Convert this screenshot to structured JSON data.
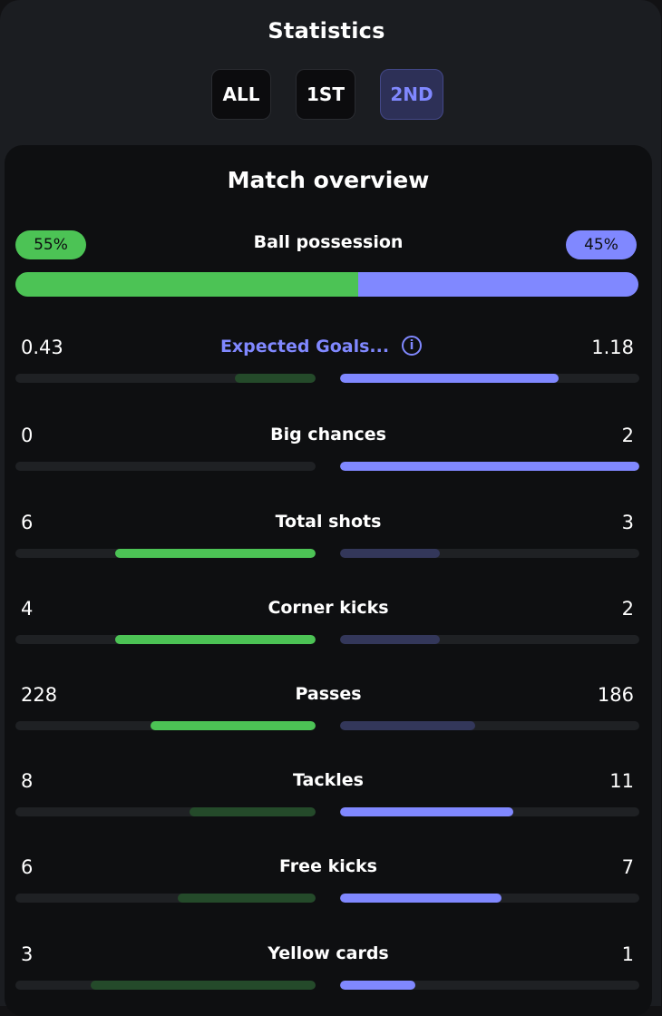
{
  "header": {
    "title": "Statistics"
  },
  "tabs": [
    {
      "label": "ALL",
      "active": false
    },
    {
      "label": "1ST",
      "active": false
    },
    {
      "label": "2ND",
      "active": true
    }
  ],
  "overview": {
    "title": "Match overview",
    "possession": {
      "label": "Ball possession",
      "home_text": "55%",
      "away_text": "45%",
      "home_share": 55,
      "away_share": 45
    },
    "stats": [
      {
        "label": "Expected Goals...",
        "home": "0.43",
        "away": "1.18",
        "home_share": 0.27,
        "away_share": 0.73,
        "home_leads": false,
        "away_leads": true,
        "link": true,
        "icon": "info-icon"
      },
      {
        "label": "Big chances",
        "home": "0",
        "away": "2",
        "home_share": 0.0,
        "away_share": 1.0,
        "home_leads": false,
        "away_leads": true
      },
      {
        "label": "Total shots",
        "home": "6",
        "away": "3",
        "home_share": 0.667,
        "away_share": 0.333,
        "home_leads": true,
        "away_leads": false
      },
      {
        "label": "Corner kicks",
        "home": "4",
        "away": "2",
        "home_share": 0.667,
        "away_share": 0.333,
        "home_leads": true,
        "away_leads": false
      },
      {
        "label": "Passes",
        "home": "228",
        "away": "186",
        "home_share": 0.55,
        "away_share": 0.45,
        "home_leads": true,
        "away_leads": false
      },
      {
        "label": "Tackles",
        "home": "8",
        "away": "11",
        "home_share": 0.42,
        "away_share": 0.58,
        "home_leads": false,
        "away_leads": true
      },
      {
        "label": "Free kicks",
        "home": "6",
        "away": "7",
        "home_share": 0.46,
        "away_share": 0.54,
        "home_leads": false,
        "away_leads": true
      },
      {
        "label": "Yellow cards",
        "home": "3",
        "away": "1",
        "home_share": 0.75,
        "away_share": 0.25,
        "home_leads": false,
        "away_leads": true
      }
    ]
  },
  "colors": {
    "home_strong": "#4cc355",
    "home_weak": "#244a2a",
    "away_strong": "#8088ff",
    "away_weak": "#33375a",
    "track": "#1f2124"
  }
}
